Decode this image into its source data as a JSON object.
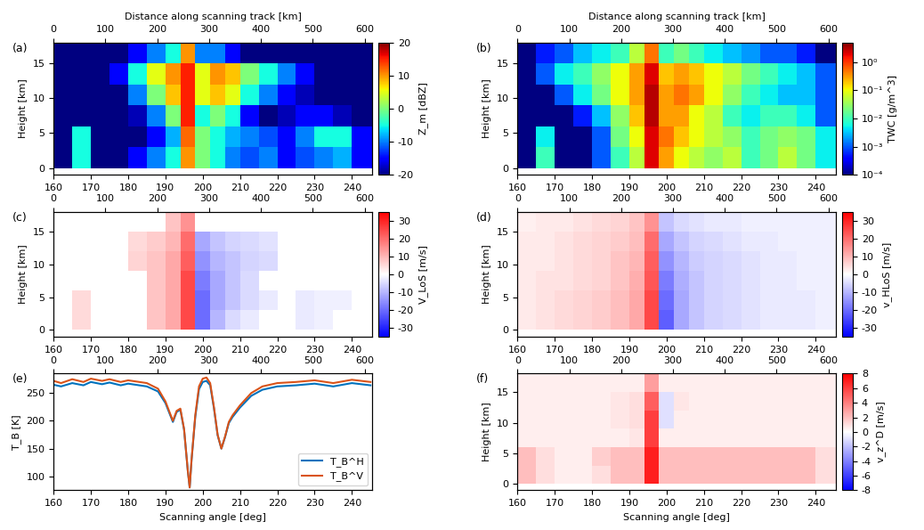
{
  "chart_data": [
    {
      "type": "heatmap",
      "annotation": "(a)",
      "x2label": "Distance along scanning track [km]",
      "ylabel": "Height [km]",
      "xlim": [
        160,
        245.5
      ],
      "xticks": [
        160,
        170,
        180,
        190,
        200,
        210,
        220,
        230,
        240
      ],
      "x2lim": [
        0,
        615
      ],
      "x2ticks": [
        0,
        100,
        200,
        300,
        400,
        500,
        600
      ],
      "ylim": [
        -1,
        18
      ],
      "yticks": [
        0,
        5,
        10,
        15
      ],
      "color": "jet",
      "x_edges": [
        160,
        165,
        170,
        175,
        180,
        185,
        190,
        194,
        198,
        202,
        206,
        210,
        215,
        220,
        225,
        230,
        235,
        240,
        245.5
      ],
      "y_edges": [
        0,
        3,
        6,
        9,
        12,
        15,
        18
      ],
      "cells": [
        [
          -20,
          -5,
          -20,
          -20,
          -15,
          -10,
          -5,
          10,
          0,
          -5,
          -10,
          -12,
          -10,
          -15,
          -12,
          -10,
          -8,
          -15
        ],
        [
          -20,
          -5,
          -20,
          -20,
          -20,
          -15,
          -8,
          12,
          0,
          -5,
          -8,
          -10,
          -12,
          -15,
          -10,
          -5,
          -5,
          -15
        ],
        [
          -20,
          -20,
          -20,
          -20,
          -18,
          -10,
          0,
          15,
          -5,
          0,
          -5,
          -15,
          -20,
          -18,
          -15,
          -15,
          -18,
          -20
        ],
        [
          -20,
          -20,
          -20,
          -20,
          -10,
          0,
          8,
          15,
          5,
          8,
          5,
          -5,
          -10,
          -15,
          -18,
          -20,
          -20,
          -20
        ],
        [
          -20,
          -20,
          -20,
          -15,
          -5,
          5,
          10,
          15,
          5,
          10,
          8,
          0,
          -5,
          -10,
          -15,
          -20,
          -20,
          -20
        ],
        [
          -20,
          -20,
          -20,
          -20,
          -15,
          -10,
          -5,
          10,
          -10,
          -10,
          -15,
          -20,
          -20,
          -20,
          -20,
          -20,
          -20,
          -20
        ]
      ],
      "colorbar": {
        "label": "Z_m [dBZ]",
        "range": [
          -20,
          20
        ],
        "ticks": [
          -20,
          -10,
          0,
          10,
          20
        ]
      }
    },
    {
      "type": "heatmap",
      "annotation": "(b)",
      "x2label": "Distance along scanning track [km]",
      "ylabel": "Height [km]",
      "log": true,
      "xlim": [
        160,
        245.5
      ],
      "xticks": [
        160,
        170,
        180,
        190,
        200,
        210,
        220,
        230,
        240
      ],
      "x2lim": [
        0,
        615
      ],
      "x2ticks": [
        0,
        100,
        200,
        300,
        400,
        500,
        600
      ],
      "ylim": [
        -1,
        18
      ],
      "yticks": [
        0,
        5,
        10,
        15
      ],
      "color": "jet",
      "x_edges": [
        160,
        165,
        170,
        175,
        180,
        185,
        190,
        194,
        198,
        202,
        206,
        210,
        215,
        220,
        225,
        230,
        235,
        240,
        245.5
      ],
      "y_edges": [
        0,
        3,
        6,
        9,
        12,
        15,
        18
      ],
      "cells": [
        [
          0.0001,
          0.01,
          0.0001,
          0.0001,
          0.001,
          0.01,
          0.05,
          2,
          0.3,
          0.1,
          0.05,
          0.03,
          0.05,
          0.01,
          0.02,
          0.05,
          0.02,
          0.005
        ],
        [
          0.0001,
          0.005,
          0.0001,
          0.0001,
          0.001,
          0.02,
          0.1,
          2,
          0.5,
          0.2,
          0.1,
          0.05,
          0.03,
          0.01,
          0.02,
          0.03,
          0.02,
          0.005
        ],
        [
          0.0001,
          0.0001,
          0.0001,
          0.0005,
          0.003,
          0.03,
          0.2,
          3,
          0.3,
          0.3,
          0.1,
          0.05,
          0.01,
          0.005,
          0.01,
          0.01,
          0.005,
          0.001
        ],
        [
          0.0001,
          0.0001,
          0.001,
          0.005,
          0.02,
          0.1,
          0.3,
          3,
          0.3,
          0.5,
          0.3,
          0.1,
          0.03,
          0.01,
          0.005,
          0.003,
          0.003,
          0.001
        ],
        [
          0.0001,
          0.001,
          0.005,
          0.01,
          0.03,
          0.1,
          0.3,
          2,
          0.2,
          0.3,
          0.2,
          0.1,
          0.05,
          0.02,
          0.01,
          0.005,
          0.003,
          0.001
        ],
        [
          0.0001,
          0.0005,
          0.001,
          0.003,
          0.005,
          0.01,
          0.05,
          0.5,
          0.01,
          0.02,
          0.01,
          0.005,
          0.003,
          0.002,
          0.001,
          0.001,
          0.0005,
          0.0001
        ]
      ],
      "colorbar": {
        "label": "TWC [g/m^3]",
        "range": [
          0.0001,
          5
        ],
        "ticks": [
          {
            "value": 0.0001,
            "label": "10⁻⁴"
          },
          {
            "value": 0.001,
            "label": "10⁻³"
          },
          {
            "value": 0.01,
            "label": "10⁻²"
          },
          {
            "value": 0.1,
            "label": "10⁻¹"
          },
          {
            "value": 1,
            "label": "10⁰"
          }
        ]
      }
    },
    {
      "type": "heatmap",
      "annotation": "(c)",
      "ylabel": "Height [km]",
      "xlim": [
        160,
        245.5
      ],
      "xticks": [
        160,
        170,
        180,
        190,
        200,
        210,
        220,
        230,
        240
      ],
      "x2lim": [
        0,
        615
      ],
      "x2ticks": [
        0,
        100,
        200,
        300,
        400,
        500,
        600
      ],
      "ylim": [
        -1,
        18
      ],
      "yticks": [
        0,
        5,
        10,
        15
      ],
      "color": "bwr",
      "x_edges": [
        160,
        165,
        170,
        175,
        180,
        185,
        190,
        194,
        198,
        202,
        206,
        210,
        215,
        220,
        225,
        230,
        235,
        240,
        245.5
      ],
      "y_edges": [
        0,
        3,
        6,
        9,
        12,
        15,
        18
      ],
      "cells": [
        [
          null,
          5,
          null,
          null,
          null,
          8,
          12,
          25,
          -20,
          -10,
          -5,
          -3,
          null,
          null,
          -3,
          -2,
          null,
          null
        ],
        [
          null,
          5,
          null,
          null,
          null,
          8,
          12,
          25,
          -20,
          -12,
          -8,
          -5,
          -3,
          null,
          -3,
          -2,
          -2,
          null
        ],
        [
          null,
          null,
          null,
          null,
          null,
          8,
          12,
          25,
          -18,
          -12,
          -8,
          -5,
          null,
          null,
          null,
          null,
          null,
          null
        ],
        [
          null,
          null,
          null,
          null,
          6,
          8,
          12,
          22,
          -15,
          -10,
          -8,
          -6,
          -5,
          null,
          null,
          null,
          null,
          null
        ],
        [
          null,
          null,
          null,
          null,
          5,
          7,
          10,
          20,
          -12,
          -8,
          -6,
          -5,
          -4,
          null,
          null,
          null,
          null,
          null
        ],
        [
          null,
          null,
          null,
          null,
          null,
          null,
          8,
          15,
          null,
          null,
          null,
          null,
          null,
          null,
          null,
          null,
          null,
          null
        ]
      ],
      "colorbar": {
        "label": "V_LoS [m/s]",
        "range": [
          -35,
          35
        ],
        "ticks": [
          -30,
          -20,
          -10,
          0,
          10,
          20,
          30
        ]
      }
    },
    {
      "type": "heatmap",
      "annotation": "(d)",
      "ylabel": "Height [km]",
      "xlim": [
        160,
        245.5
      ],
      "xticks": [
        160,
        170,
        180,
        190,
        200,
        210,
        220,
        230,
        240
      ],
      "x2lim": [
        0,
        615
      ],
      "x2ticks": [
        0,
        100,
        200,
        300,
        400,
        500,
        600
      ],
      "ylim": [
        -1,
        18
      ],
      "yticks": [
        0,
        5,
        10,
        15
      ],
      "color": "bwr",
      "x_edges": [
        160,
        165,
        170,
        175,
        180,
        185,
        190,
        194,
        198,
        202,
        206,
        210,
        215,
        220,
        225,
        230,
        235,
        240,
        245.5
      ],
      "y_edges": [
        0,
        3,
        6,
        9,
        12,
        15,
        18
      ],
      "cells": [
        [
          3,
          4,
          5,
          6,
          7,
          9,
          12,
          25,
          -22,
          -12,
          -8,
          -6,
          -5,
          -4,
          -3,
          -3,
          -3,
          -2
        ],
        [
          3,
          4,
          5,
          6,
          7,
          9,
          12,
          25,
          -20,
          -12,
          -8,
          -6,
          -5,
          -4,
          -3,
          -3,
          -3,
          -2
        ],
        [
          3,
          4,
          4,
          5,
          6,
          8,
          11,
          23,
          -18,
          -11,
          -8,
          -6,
          -5,
          -4,
          -3,
          -3,
          -2,
          -2
        ],
        [
          3,
          3,
          4,
          5,
          6,
          8,
          10,
          22,
          -15,
          -10,
          -7,
          -6,
          -5,
          -4,
          -3,
          -3,
          -2,
          -2
        ],
        [
          3,
          3,
          4,
          5,
          6,
          7,
          9,
          20,
          -12,
          -8,
          -6,
          -5,
          -4,
          -3,
          -3,
          -2,
          -2,
          -2
        ],
        [
          2,
          3,
          3,
          4,
          5,
          6,
          8,
          15,
          -8,
          -5,
          -4,
          -3,
          -3,
          -2,
          -2,
          -2,
          -2,
          -2
        ]
      ],
      "colorbar": {
        "label": "v_HLoS [m/s]",
        "range": [
          -35,
          35
        ],
        "ticks": [
          -30,
          -20,
          -10,
          0,
          10,
          20,
          30
        ]
      }
    },
    {
      "type": "line",
      "annotation": "(e)",
      "xlabel": "Scanning angle [deg]",
      "ylabel": "T_B [K]",
      "xlim": [
        160,
        245.5
      ],
      "xticks": [
        160,
        170,
        180,
        190,
        200,
        210,
        220,
        230,
        240
      ],
      "x2lim": [
        0,
        615
      ],
      "x2ticks": [
        0,
        100,
        200,
        300,
        400,
        500,
        600
      ],
      "ylim": [
        75,
        285
      ],
      "yticks": [
        100,
        150,
        200,
        250
      ],
      "legend": "lower right",
      "x": [
        160,
        162,
        165,
        168,
        170,
        173,
        175,
        178,
        180,
        183,
        185,
        188,
        190,
        192,
        193,
        194,
        195,
        196,
        196.5,
        197,
        198,
        199,
        200,
        201,
        202,
        203,
        204,
        205,
        206,
        207,
        208,
        210,
        213,
        216,
        220,
        225,
        230,
        235,
        240,
        245
      ],
      "series": [
        {
          "name": "T_B^H",
          "color": "#0072bd",
          "values": [
            265,
            262,
            268,
            264,
            270,
            266,
            269,
            264,
            267,
            264,
            262,
            253,
            232,
            198,
            216,
            220,
            184,
            110,
            80,
            129,
            207,
            257,
            270,
            272,
            264,
            223,
            174,
            150,
            171,
            196,
            207,
            224,
            245,
            256,
            262,
            264,
            267,
            262,
            268,
            264
          ]
        },
        {
          "name": "T_B^V",
          "color": "#d95319",
          "values": [
            272,
            268,
            275,
            270,
            276,
            272,
            275,
            270,
            273,
            270,
            268,
            258,
            235,
            200,
            218,
            222,
            185,
            110,
            80,
            130,
            210,
            262,
            276,
            278,
            268,
            225,
            175,
            150,
            172,
            198,
            210,
            228,
            250,
            262,
            268,
            270,
            273,
            268,
            274,
            270
          ]
        }
      ]
    },
    {
      "type": "heatmap",
      "annotation": "(f)",
      "xlabel": "Scanning angle [deg]",
      "ylabel": "Height [km]",
      "xlim": [
        160,
        245.5
      ],
      "xticks": [
        160,
        170,
        180,
        190,
        200,
        210,
        220,
        230,
        240
      ],
      "x2lim": [
        0,
        615
      ],
      "x2ticks": [
        0,
        100,
        200,
        300,
        400,
        500,
        600
      ],
      "ylim": [
        -1,
        18
      ],
      "yticks": [
        0,
        5,
        10,
        15
      ],
      "color": "bwr",
      "x_edges": [
        160,
        165,
        170,
        175,
        180,
        185,
        190,
        194,
        198,
        202,
        206,
        210,
        215,
        220,
        225,
        230,
        235,
        240,
        245.5
      ],
      "y_edges": [
        0,
        3,
        6,
        9,
        12,
        15,
        18
      ],
      "cells": [
        [
          2,
          1,
          0.5,
          0.5,
          1,
          2,
          2,
          7,
          2,
          2,
          2,
          2,
          2,
          2,
          2,
          2,
          2,
          1
        ],
        [
          2,
          1,
          0.5,
          0.5,
          1.5,
          2,
          2,
          7,
          2,
          2,
          2,
          2,
          2,
          2,
          2,
          2,
          2,
          1
        ],
        [
          0.5,
          0.5,
          0.5,
          0.5,
          0.5,
          0.5,
          0.8,
          6,
          0.5,
          0.5,
          0.5,
          0.5,
          0.5,
          0.5,
          0.5,
          0.5,
          0.5,
          0.5
        ],
        [
          0.5,
          0.5,
          0.5,
          0.5,
          0.5,
          0.8,
          1,
          6,
          -1,
          0.5,
          0.5,
          0.5,
          0.5,
          0.5,
          0.5,
          0.5,
          0.5,
          0.5
        ],
        [
          0.5,
          0.5,
          0.5,
          0.5,
          0.5,
          0.8,
          1,
          5,
          -1,
          0.8,
          0.5,
          0.5,
          0.5,
          0.5,
          0.5,
          0.5,
          0.5,
          0.5
        ],
        [
          0.5,
          0.5,
          0.5,
          0.5,
          0.5,
          0.5,
          0.5,
          3,
          0.5,
          0.5,
          0.5,
          0.5,
          0.5,
          0.5,
          0.5,
          0.5,
          0.5,
          0.5
        ]
      ],
      "colorbar": {
        "label": "v_z^D [m/s]",
        "range": [
          -8,
          8
        ],
        "ticks": [
          -8,
          -6,
          -4,
          -2,
          0,
          2,
          4,
          6,
          8
        ]
      }
    }
  ]
}
